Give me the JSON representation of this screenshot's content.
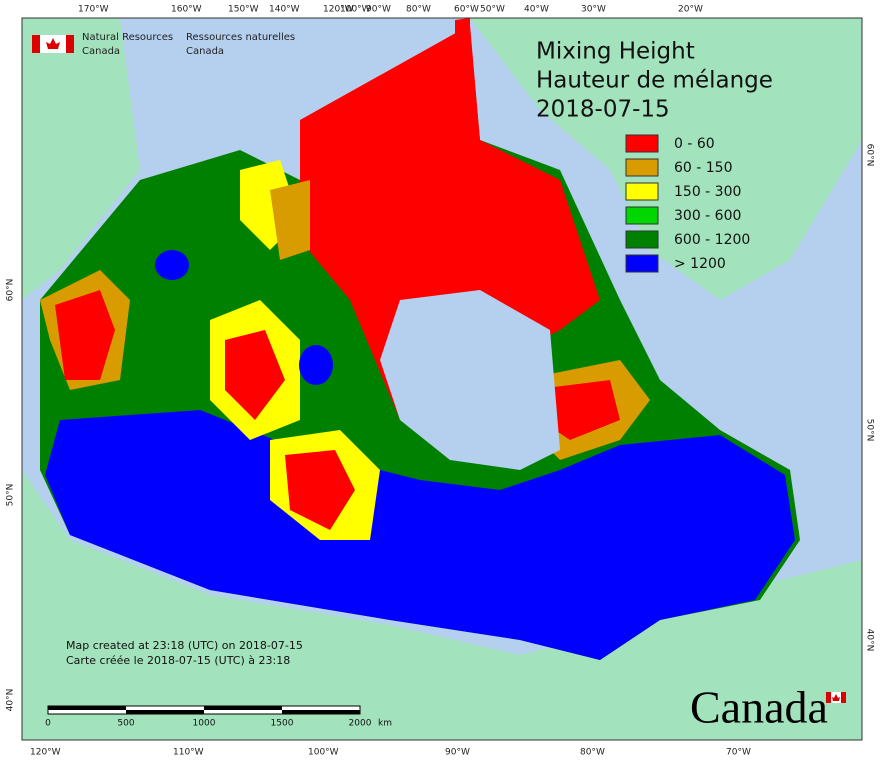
{
  "header": {
    "agency_en": [
      "Natural Resources",
      "Canada"
    ],
    "agency_fr": [
      "Ressources naturelles",
      "Canada"
    ]
  },
  "title": [
    "Mixing Height",
    "Hauteur de mélange",
    "2018-07-15"
  ],
  "legend": [
    {
      "label": "0 - 60",
      "color": "#ff0000"
    },
    {
      "label": "60 - 150",
      "color": "#d99c00"
    },
    {
      "label": "150 - 300",
      "color": "#ffff00"
    },
    {
      "label": "300 - 600",
      "color": "#00d600"
    },
    {
      "label": "600 - 1200",
      "color": "#008000"
    },
    {
      "label": "> 1200",
      "color": "#0000ff"
    }
  ],
  "top_labels": [
    "170°W",
    "160°W",
    "150°W",
    "140°W",
    "120°W",
    "100°W",
    "90°W",
    "80°W",
    "60°W",
    "50°W",
    "40°W",
    "30°W",
    "20°W"
  ],
  "bottom_labels": [
    "120°W",
    "110°W",
    "100°W",
    "90°W",
    "80°W",
    "70°W"
  ],
  "left_labels": [
    "60°N",
    "50°N",
    "40°N"
  ],
  "right_labels": [
    "60°N",
    "50°N",
    "40°N"
  ],
  "footer": [
    "Map created at 23:18 (UTC) on 2018-07-15",
    "Carte créée le 2018-07-15 (UTC) à 23:18"
  ],
  "scale": {
    "ticks": [
      "0",
      "500",
      "1000",
      "1500",
      "2000"
    ],
    "unit": "km"
  },
  "wordmark": "Canada"
}
